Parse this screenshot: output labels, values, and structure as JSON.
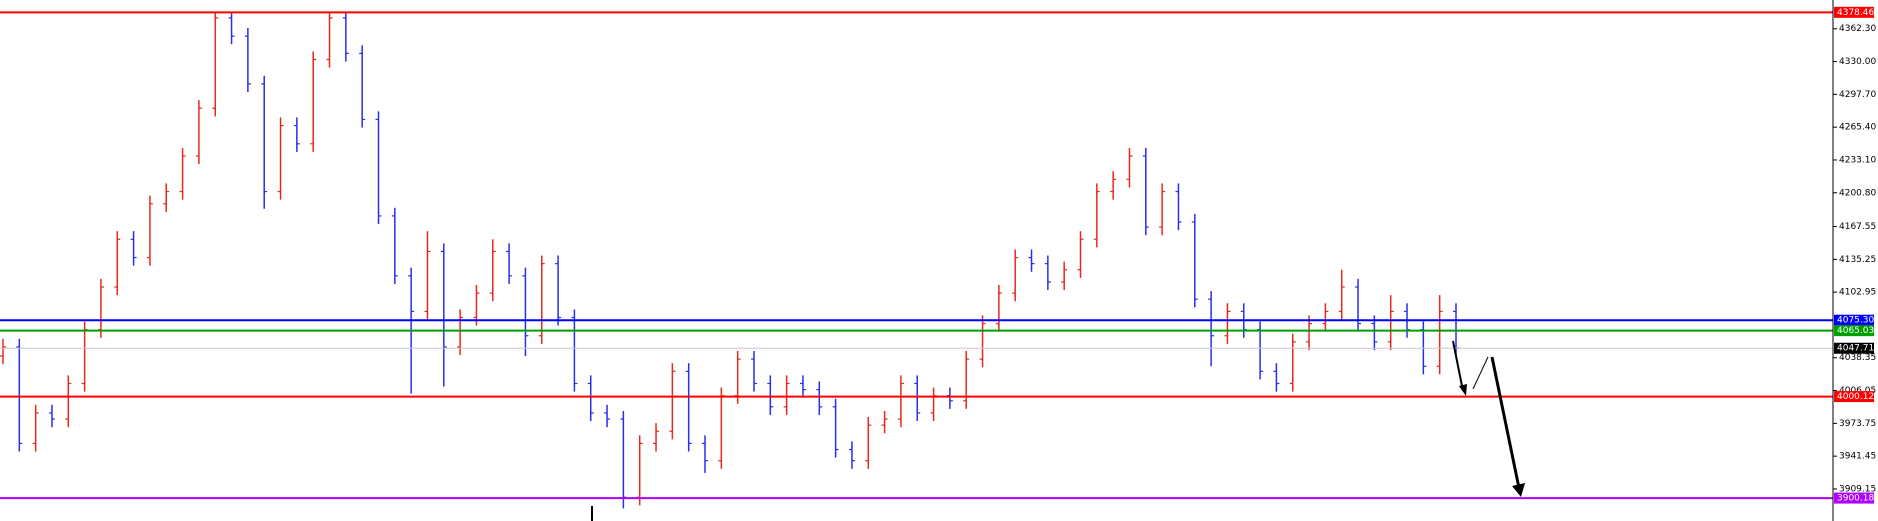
{
  "chart_data": {
    "type": "ohlc",
    "up_color": "#e8281e",
    "down_color": "#2a2ee8",
    "ylim": [
      3877.6,
      4390.6
    ],
    "yticks": [
      {
        "value": 4362.3,
        "label": "4362.30"
      },
      {
        "value": 4330,
        "label": "4330.00"
      },
      {
        "value": 4297.7,
        "label": "4297.70"
      },
      {
        "value": 4265.4,
        "label": "4265.40"
      },
      {
        "value": 4233.1,
        "label": "4233.10"
      },
      {
        "value": 4200.8,
        "label": "4200.80"
      },
      4167.55,
      4135.25,
      4102.95,
      4038.35,
      4006.05,
      3973.75,
      3941.45,
      3909.15
    ],
    "levels": [
      {
        "value": 4378.46,
        "color": "#ff0000"
      },
      {
        "value": 4075.3,
        "label": "4075.30",
        "color": "#0000ff"
      },
      {
        "value": 4065.03,
        "color": "#00a000"
      },
      {
        "value": 4047.71,
        "color": "#000000",
        "line_color": "#c8c8c8"
      },
      {
        "value": 4000.12,
        "color": "#ff0000"
      },
      {
        "value": 3900.18,
        "color": "#b000ff"
      }
    ],
    "open": [
      4040,
      4049,
      3954,
      3984,
      3978,
      4013,
      4066,
      4108,
      4155,
      4137,
      4190,
      4202,
      4237,
      4284,
      4373,
      4355,
      4308,
      4202,
      4267,
      4249,
      4332,
      4373,
      4338,
      4273,
      4178,
      4119,
      4084,
      4143,
      4049,
      4078,
      4102,
      4143,
      4119,
      4060,
      4131,
      4078,
      4013,
      3984,
      3978,
      3901,
      3954,
      3966,
      4025,
      3954,
      3937,
      4001,
      4037,
      4013,
      3990,
      4013,
      4007,
      3990,
      3948,
      3937,
      3972,
      3978,
      4013,
      3984,
      4001,
      3996,
      4037,
      4072,
      4102,
      4137,
      4131,
      4113,
      4125,
      4155,
      4202,
      4214,
      4237,
      4167,
      4202,
      4172,
      4096,
      4060,
      4084,
      4066,
      4025,
      4013,
      4054,
      4072,
      4084,
      4108,
      4072,
      4054,
      4084,
      4066,
      4030,
      4084
    ],
    "high": [
      4057,
      4057,
      3992,
      3992,
      4021,
      4074,
      4116,
      4163,
      4163,
      4198,
      4210,
      4245,
      4292,
      4379,
      4379,
      4363,
      4316,
      4275,
      4275,
      4340,
      4378,
      4378,
      4346,
      4281,
      4186,
      4127,
      4163,
      4151,
      4086,
      4110,
      4155,
      4151,
      4127,
      4139,
      4139,
      4086,
      4021,
      3992,
      3986,
      3962,
      3974,
      4033,
      4033,
      3962,
      4009,
      4045,
      4045,
      4021,
      4021,
      4021,
      4015,
      3998,
      3956,
      3980,
      3986,
      4021,
      4021,
      4009,
      4009,
      4045,
      4080,
      4110,
      4145,
      4145,
      4139,
      4133,
      4163,
      4210,
      4222,
      4245,
      4245,
      4210,
      4210,
      4180,
      4104,
      4092,
      4092,
      4074,
      4033,
      4062,
      4080,
      4092,
      4125,
      4116,
      4080,
      4100,
      4092,
      4074,
      4100,
      4092
    ],
    "low": [
      4032,
      3946,
      3946,
      3970,
      3970,
      4005,
      4058,
      4100,
      4129,
      4129,
      4182,
      4194,
      4229,
      4276,
      4347,
      4300,
      4185,
      4194,
      4241,
      4241,
      4324,
      4330,
      4265,
      4170,
      4111,
      4003,
      4076,
      4010,
      4041,
      4070,
      4094,
      4111,
      4040,
      4052,
      4070,
      4005,
      3976,
      3970,
      3890,
      3893,
      3946,
      3958,
      3946,
      3925,
      3929,
      3993,
      4005,
      3982,
      3982,
      3999,
      3982,
      3940,
      3929,
      3929,
      3964,
      3970,
      3976,
      3976,
      3988,
      3988,
      4029,
      4064,
      4094,
      4123,
      4105,
      4105,
      4117,
      4147,
      4194,
      4206,
      4159,
      4159,
      4164,
      4088,
      4030,
      4052,
      4058,
      4017,
      4005,
      4005,
      4046,
      4064,
      4076,
      4064,
      4046,
      4046,
      4058,
      4022,
      4022,
      4040
    ],
    "close": [
      4049,
      3954,
      3984,
      3978,
      4013,
      4066,
      4108,
      4155,
      4137,
      4190,
      4202,
      4237,
      4284,
      4373,
      4355,
      4308,
      4202,
      4267,
      4249,
      4332,
      4373,
      4338,
      4273,
      4178,
      4119,
      4084,
      4143,
      4049,
      4078,
      4102,
      4143,
      4119,
      4060,
      4131,
      4078,
      4013,
      3984,
      3978,
      3901,
      3954,
      3966,
      4025,
      3954,
      3937,
      4001,
      4037,
      4013,
      3990,
      4013,
      4007,
      3990,
      3948,
      3937,
      3972,
      3978,
      4013,
      3984,
      4001,
      3996,
      4037,
      4072,
      4102,
      4137,
      4131,
      4113,
      4125,
      4155,
      4202,
      4214,
      4237,
      4167,
      4202,
      4172,
      4096,
      4060,
      4084,
      4066,
      4025,
      4013,
      4054,
      4072,
      4084,
      4108,
      4072,
      4054,
      4084,
      4066,
      4030,
      4084,
      4047.71
    ]
  }
}
